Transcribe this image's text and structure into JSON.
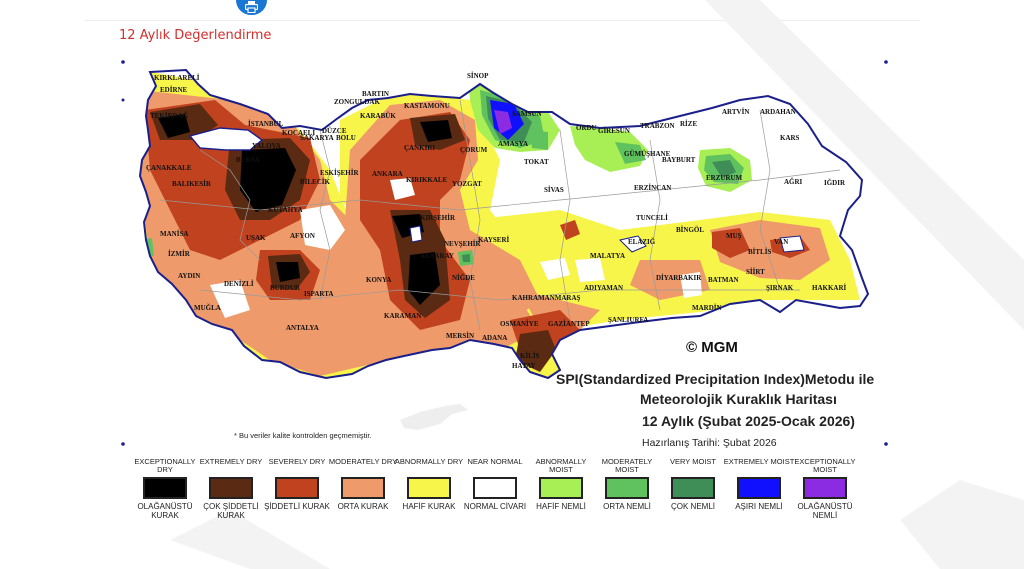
{
  "page": {
    "section_title": "12 Aylık Değerlendirme"
  },
  "map": {
    "title_lines": [
      "SPI(Standardized Precipitation Index)Metodu ile",
      "Meteorolojik Kuraklık Haritası",
      "12 Aylık (Şubat 2025-Ocak 2026)"
    ],
    "prepared_date": "Hazırlanış Tarihi: Şubat 2026",
    "copyright": "© MGM",
    "note": "* Bu veriler kalite kontrolden geçmemiştir.",
    "colors": {
      "border": "#1b1f8a",
      "exceptionally_dry": "#000000",
      "extremely_dry": "#5a2a12",
      "severely_dry": "#c0421e",
      "moderately_dry": "#ef9a6a",
      "abnormally_dry": "#f7f54a",
      "near_normal": "#ffffff",
      "abnormally_moist": "#a8ef55",
      "moderately_moist": "#5fc25f",
      "very_moist": "#3f8e57",
      "extremely_moist": "#1010ff",
      "exceptionally_moist": "#8b2be2"
    },
    "cities": [
      "KIRKLARELİ",
      "EDİRNE",
      "TEKİRDAĞ",
      "İSTANBUL",
      "ÇANAKKALE",
      "BALIKESİR",
      "BURSA",
      "YALOVA",
      "KOCAELİ",
      "SAKARYA",
      "DÜZCE",
      "BOLU",
      "BİLECİK",
      "KÜTAHYA",
      "ESKİŞEHİR",
      "ZONGULDAK",
      "BARTIN",
      "KARABÜK",
      "KASTAMONU",
      "SİNOP",
      "SAMSUN",
      "ÇANKIRI",
      "ÇORUM",
      "AMASYA",
      "TOKAT",
      "ORDU",
      "GİRESUN",
      "TRABZON",
      "RİZE",
      "ARTVİN",
      "ARDAHAN",
      "KARS",
      "IĞDIR",
      "AĞRI",
      "ERZURUM",
      "GÜMÜŞHANE",
      "BAYBURT",
      "ERZİNCAN",
      "SİVAS",
      "YOZGAT",
      "KIRIKKALE",
      "ANKARA",
      "KIRŞEHİR",
      "NEVŞEHİR",
      "KAYSERİ",
      "AKSARAY",
      "NİĞDE",
      "KONYA",
      "KARAMAN",
      "MERSİN",
      "ADANA",
      "OSMANİYE",
      "HATAY",
      "KAHRAMANMARAŞ",
      "GAZİANTEP",
      "ŞANLIURFA",
      "ADIYAMAN",
      "MALATYA",
      "ELAZIĞ",
      "TUNCELİ",
      "BİNGÖL",
      "MUŞ",
      "BİTLİS",
      "VAN",
      "HAKKARİ",
      "ŞIRNAK",
      "SİİRT",
      "BATMAN",
      "DİYARBAKIR",
      "MARDİN",
      "KİLİS",
      "MANİSA",
      "İZMİR",
      "AYDIN",
      "MUĞLA",
      "DENİZLİ",
      "UŞAK",
      "AFYON",
      "ISPARTA",
      "BURDUR",
      "ANTALYA"
    ]
  },
  "legend": {
    "items": [
      {
        "en": "EXCEPTIONALLY DRY",
        "tr": "OLAĞANÜSTÜ KURAK",
        "color": "#000000"
      },
      {
        "en": "EXTREMELY DRY",
        "tr": "ÇOK ŞİDDETLİ KURAK",
        "color": "#5a2a12"
      },
      {
        "en": "SEVERELY DRY",
        "tr": "ŞİDDETLİ KURAK",
        "color": "#c0421e"
      },
      {
        "en": "MODERATELY DRY",
        "tr": "ORTA KURAK",
        "color": "#ef9a6a"
      },
      {
        "en": "ABNORMALLY DRY",
        "tr": "HAFİF KURAK",
        "color": "#f7f54a"
      },
      {
        "en": "NEAR NORMAL",
        "tr": "NORMAL CİVARI",
        "color": "#ffffff"
      },
      {
        "en": "ABNORMALLY MOIST",
        "tr": "HAFİF NEMLİ",
        "color": "#a8ef55"
      },
      {
        "en": "MODERATELY MOIST",
        "tr": "ORTA NEMLİ",
        "color": "#5fc25f"
      },
      {
        "en": "VERY MOIST",
        "tr": "ÇOK NEMLİ",
        "color": "#3f8e57"
      },
      {
        "en": "EXTREMELY MOIST",
        "tr": "AŞIRI NEMLİ",
        "color": "#1010ff"
      },
      {
        "en": "EXCEPTIONALLY MOIST",
        "tr": "OLAĞANÜSTÜ NEMLİ",
        "color": "#8b2be2"
      }
    ]
  }
}
